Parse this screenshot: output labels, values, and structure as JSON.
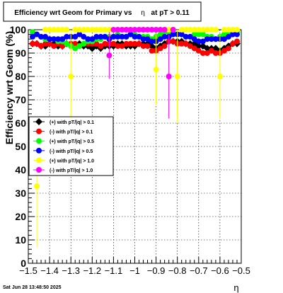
{
  "chart_data": {
    "type": "scatter",
    "title": "Efficiency wrt Geom for Primary vs η at pT > 0.11",
    "title_parts": [
      "Efficiency wrt Geom for Primary vs",
      "η",
      "at pT > 0.11"
    ],
    "xlabel": "η",
    "ylabel": "Efficiency wrt Geom (%)",
    "xlim": [
      -1.5,
      -0.5
    ],
    "ylim": [
      0,
      100
    ],
    "x_ticks": [
      -1.5,
      -1.4,
      -1.3,
      -1.2,
      -1.1,
      -1,
      -0.9,
      -0.8,
      -0.7,
      -0.6,
      -0.5
    ],
    "x_tick_labels": [
      "−1.5",
      "−1.4",
      "−1.3",
      "−1.2",
      "−1.1",
      "−1",
      "−0.9",
      "−0.8",
      "−0.7",
      "−0.6",
      "−0.5"
    ],
    "y_ticks": [
      0,
      10,
      20,
      30,
      40,
      50,
      60,
      70,
      80,
      90,
      100
    ],
    "y_tick_labels": [
      "0",
      "10",
      "20",
      "30",
      "40",
      "50",
      "60",
      "70",
      "80",
      "90",
      "100"
    ],
    "grid": true,
    "legend_position": "left",
    "timestamp": "Sat Jun 28 13:48:50 2025",
    "series": [
      {
        "name": "(+) with pT/|q| > 0.1",
        "color": "#000000",
        "marker": "diamond",
        "x": [
          -1.48,
          -1.46,
          -1.44,
          -1.42,
          -1.4,
          -1.38,
          -1.36,
          -1.34,
          -1.32,
          -1.3,
          -1.28,
          -1.26,
          -1.24,
          -1.22,
          -1.2,
          -1.18,
          -1.16,
          -1.14,
          -1.12,
          -1.1,
          -1.08,
          -1.06,
          -1.04,
          -1.02,
          -1.0,
          -0.98,
          -0.96,
          -0.94,
          -0.92,
          -0.9,
          -0.88,
          -0.86,
          -0.84,
          -0.82,
          -0.8,
          -0.78,
          -0.76,
          -0.74,
          -0.72,
          -0.7,
          -0.68,
          -0.66,
          -0.64,
          -0.62,
          -0.6,
          -0.58,
          -0.56,
          -0.54,
          -0.52
        ],
        "y": [
          94,
          94,
          93,
          93,
          94,
          94,
          93,
          93,
          94,
          94,
          93,
          94,
          93,
          93,
          92,
          93,
          92,
          93,
          93,
          93,
          94,
          94,
          93,
          93,
          93,
          94,
          94,
          94,
          93,
          92,
          93,
          94,
          95,
          95,
          95,
          95,
          94,
          94,
          94,
          93,
          93,
          92,
          92,
          92,
          91,
          92,
          93,
          94,
          94
        ]
      },
      {
        "name": "(-) with pT/|q| > 0.1",
        "color": "#ff0000",
        "marker": "circle",
        "x": [
          -1.48,
          -1.46,
          -1.44,
          -1.42,
          -1.4,
          -1.38,
          -1.36,
          -1.34,
          -1.32,
          -1.3,
          -1.28,
          -1.26,
          -1.24,
          -1.22,
          -1.2,
          -1.18,
          -1.16,
          -1.14,
          -1.12,
          -1.1,
          -1.08,
          -1.06,
          -1.04,
          -1.02,
          -1.0,
          -0.98,
          -0.96,
          -0.94,
          -0.92,
          -0.9,
          -0.88,
          -0.86,
          -0.84,
          -0.82,
          -0.8,
          -0.78,
          -0.76,
          -0.74,
          -0.72,
          -0.7,
          -0.68,
          -0.66,
          -0.64,
          -0.62,
          -0.6,
          -0.58,
          -0.56,
          -0.54,
          -0.52
        ],
        "y": [
          94,
          94,
          93,
          94,
          94,
          93,
          94,
          93,
          94,
          94,
          94,
          93,
          94,
          94,
          94,
          94,
          93,
          94,
          94,
          94,
          93,
          93,
          94,
          94,
          94,
          94,
          93,
          93,
          91,
          91,
          92,
          93,
          95,
          95,
          94,
          94,
          94,
          93,
          92,
          91,
          90,
          90,
          91,
          90,
          90,
          91,
          92,
          94,
          95
        ]
      },
      {
        "name": "(+) with pT/|q| > 0.5",
        "color": "#00ff00",
        "marker": "circle",
        "x": [
          -1.48,
          -1.46,
          -1.44,
          -1.42,
          -1.4,
          -1.38,
          -1.36,
          -1.34,
          -1.32,
          -1.3,
          -1.28,
          -1.26,
          -1.24,
          -1.22,
          -1.2,
          -1.18,
          -1.16,
          -1.14,
          -1.12,
          -1.1,
          -1.08,
          -1.06,
          -1.04,
          -1.02,
          -1.0,
          -0.98,
          -0.96,
          -0.94,
          -0.92,
          -0.9,
          -0.88,
          -0.86,
          -0.84,
          -0.82,
          -0.8,
          -0.78,
          -0.76,
          -0.74,
          -0.72,
          -0.7,
          -0.68,
          -0.66,
          -0.64,
          -0.62,
          -0.6,
          -0.58,
          -0.56,
          -0.54,
          -0.52
        ],
        "y": [
          99,
          98,
          97,
          96,
          96,
          96,
          95,
          95,
          94,
          93,
          92,
          93,
          94,
          95,
          95,
          96,
          96,
          97,
          97,
          97,
          98,
          97,
          97,
          98,
          98,
          97,
          97,
          97,
          96,
          97,
          98,
          99,
          99,
          99,
          98,
          98,
          97,
          97,
          98,
          98,
          98,
          97,
          97,
          96,
          97,
          98,
          98,
          98,
          99
        ]
      },
      {
        "name": "(-) with pT/|q| > 0.5",
        "color": "#0000ff",
        "marker": "circle",
        "x": [
          -1.48,
          -1.46,
          -1.44,
          -1.42,
          -1.4,
          -1.38,
          -1.36,
          -1.34,
          -1.32,
          -1.3,
          -1.28,
          -1.26,
          -1.24,
          -1.22,
          -1.2,
          -1.18,
          -1.16,
          -1.14,
          -1.12,
          -1.1,
          -1.08,
          -1.06,
          -1.04,
          -1.02,
          -1.0,
          -0.98,
          -0.96,
          -0.94,
          -0.92,
          -0.9,
          -0.88,
          -0.86,
          -0.84,
          -0.82,
          -0.8,
          -0.78,
          -0.76,
          -0.74,
          -0.72,
          -0.7,
          -0.68,
          -0.66,
          -0.64,
          -0.62,
          -0.6,
          -0.58,
          -0.56,
          -0.54,
          -0.52
        ],
        "y": [
          97,
          98,
          97,
          97,
          96,
          96,
          96,
          96,
          97,
          97,
          97,
          98,
          97,
          96,
          96,
          97,
          97,
          97,
          96,
          97,
          97,
          97,
          97,
          98,
          97,
          97,
          96,
          96,
          95,
          95,
          96,
          97,
          97,
          98,
          98,
          98,
          97,
          97,
          96,
          95,
          95,
          96,
          96,
          96,
          96,
          96,
          97,
          98,
          98
        ]
      },
      {
        "name": "(+) with pT/|q| > 1.0",
        "color": "#ffff00",
        "marker": "circle",
        "x": [
          -1.46,
          -1.42,
          -1.4,
          -1.38,
          -1.36,
          -1.34,
          -1.32,
          -1.3,
          -1.28,
          -1.26,
          -1.24,
          -1.22,
          -1.2,
          -1.18,
          -1.16,
          -1.14,
          -1.12,
          -1.1,
          -1.08,
          -1.06,
          -1.04,
          -1.02,
          -1.0,
          -0.98,
          -0.96,
          -0.94,
          -0.92,
          -0.9,
          -0.88,
          -0.86,
          -0.84,
          -0.82,
          -0.8,
          -0.78,
          -0.76,
          -0.74,
          -0.72,
          -0.7,
          -0.68,
          -0.66,
          -0.64,
          -0.62,
          -0.6,
          -0.58,
          -0.56,
          -0.54,
          -0.52
        ],
        "y": [
          33,
          100,
          100,
          100,
          100,
          100,
          100,
          80,
          100,
          100,
          100,
          100,
          100,
          100,
          100,
          100,
          100,
          100,
          100,
          100,
          100,
          100,
          100,
          100,
          100,
          100,
          100,
          83,
          100,
          100,
          100,
          100,
          80,
          100,
          100,
          100,
          100,
          100,
          100,
          100,
          100,
          100,
          80,
          100,
          100,
          100,
          100
        ],
        "err": [
          26,
          0,
          0,
          0,
          0,
          0,
          0,
          20,
          0,
          0,
          0,
          0,
          0,
          0,
          0,
          0,
          0,
          0,
          0,
          0,
          0,
          0,
          0,
          0,
          0,
          0,
          0,
          15,
          0,
          0,
          0,
          0,
          20,
          0,
          0,
          0,
          0,
          0,
          0,
          0,
          0,
          0,
          18,
          0,
          0,
          0,
          0
        ]
      },
      {
        "name": "(-) with pT/|q| > 1.0",
        "color": "#ff00ff",
        "marker": "circle",
        "x": [
          -1.12,
          -1.1,
          -1.08,
          -1.06,
          -1.04,
          -1.02,
          -1.0,
          -0.98,
          -0.96,
          -0.94,
          -0.92,
          -0.9,
          -0.88,
          -0.86,
          -0.84,
          -0.82
        ],
        "y": [
          89,
          100,
          100,
          100,
          100,
          100,
          100,
          100,
          100,
          100,
          100,
          100,
          100,
          100,
          80,
          100
        ],
        "err": [
          10,
          0,
          0,
          0,
          0,
          0,
          0,
          0,
          0,
          0,
          0,
          0,
          0,
          0,
          18,
          0
        ]
      }
    ]
  }
}
